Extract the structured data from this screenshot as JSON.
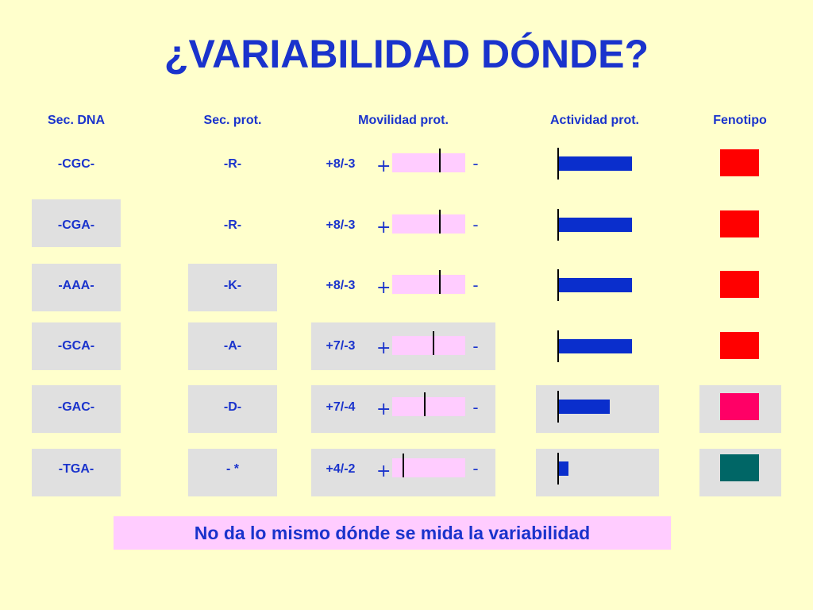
{
  "title": "¿VARIABILIDAD DÓNDE?",
  "headers": {
    "dna": "Sec. DNA",
    "prot": "Sec. prot.",
    "mobility": "Movilidad prot.",
    "activity": "Actividad prot.",
    "phenotype": "Fenotipo"
  },
  "plus_symbol": "+",
  "minus_symbol": "-",
  "rows": [
    {
      "dna": "-CGC-",
      "prot": "-R-",
      "mobility": "+8/-3",
      "band_position": 0.65,
      "activity": 1.0,
      "phenotype_color": "#FF0000"
    },
    {
      "dna": "-CGA-",
      "prot": "-R-",
      "mobility": "+8/-3",
      "band_position": 0.65,
      "activity": 1.0,
      "phenotype_color": "#FF0000"
    },
    {
      "dna": "-AAA-",
      "prot": "-K-",
      "mobility": "+8/-3",
      "band_position": 0.65,
      "activity": 1.0,
      "phenotype_color": "#FF0000"
    },
    {
      "dna": "-GCA-",
      "prot": "-A-",
      "mobility": "+7/-3",
      "band_position": 0.57,
      "activity": 1.0,
      "phenotype_color": "#FF0000"
    },
    {
      "dna": "-GAC-",
      "prot": "-D-",
      "mobility": "+7/-4",
      "band_position": 0.45,
      "activity": 0.7,
      "phenotype_color": "#FF0066"
    },
    {
      "dna": "-TGA-",
      "prot": "- *",
      "mobility": "+4/-2",
      "band_position": 0.15,
      "activity": 0.13,
      "phenotype_color": "#006666"
    }
  ],
  "footer": "No da lo mismo dónde se mida la variabilidad"
}
